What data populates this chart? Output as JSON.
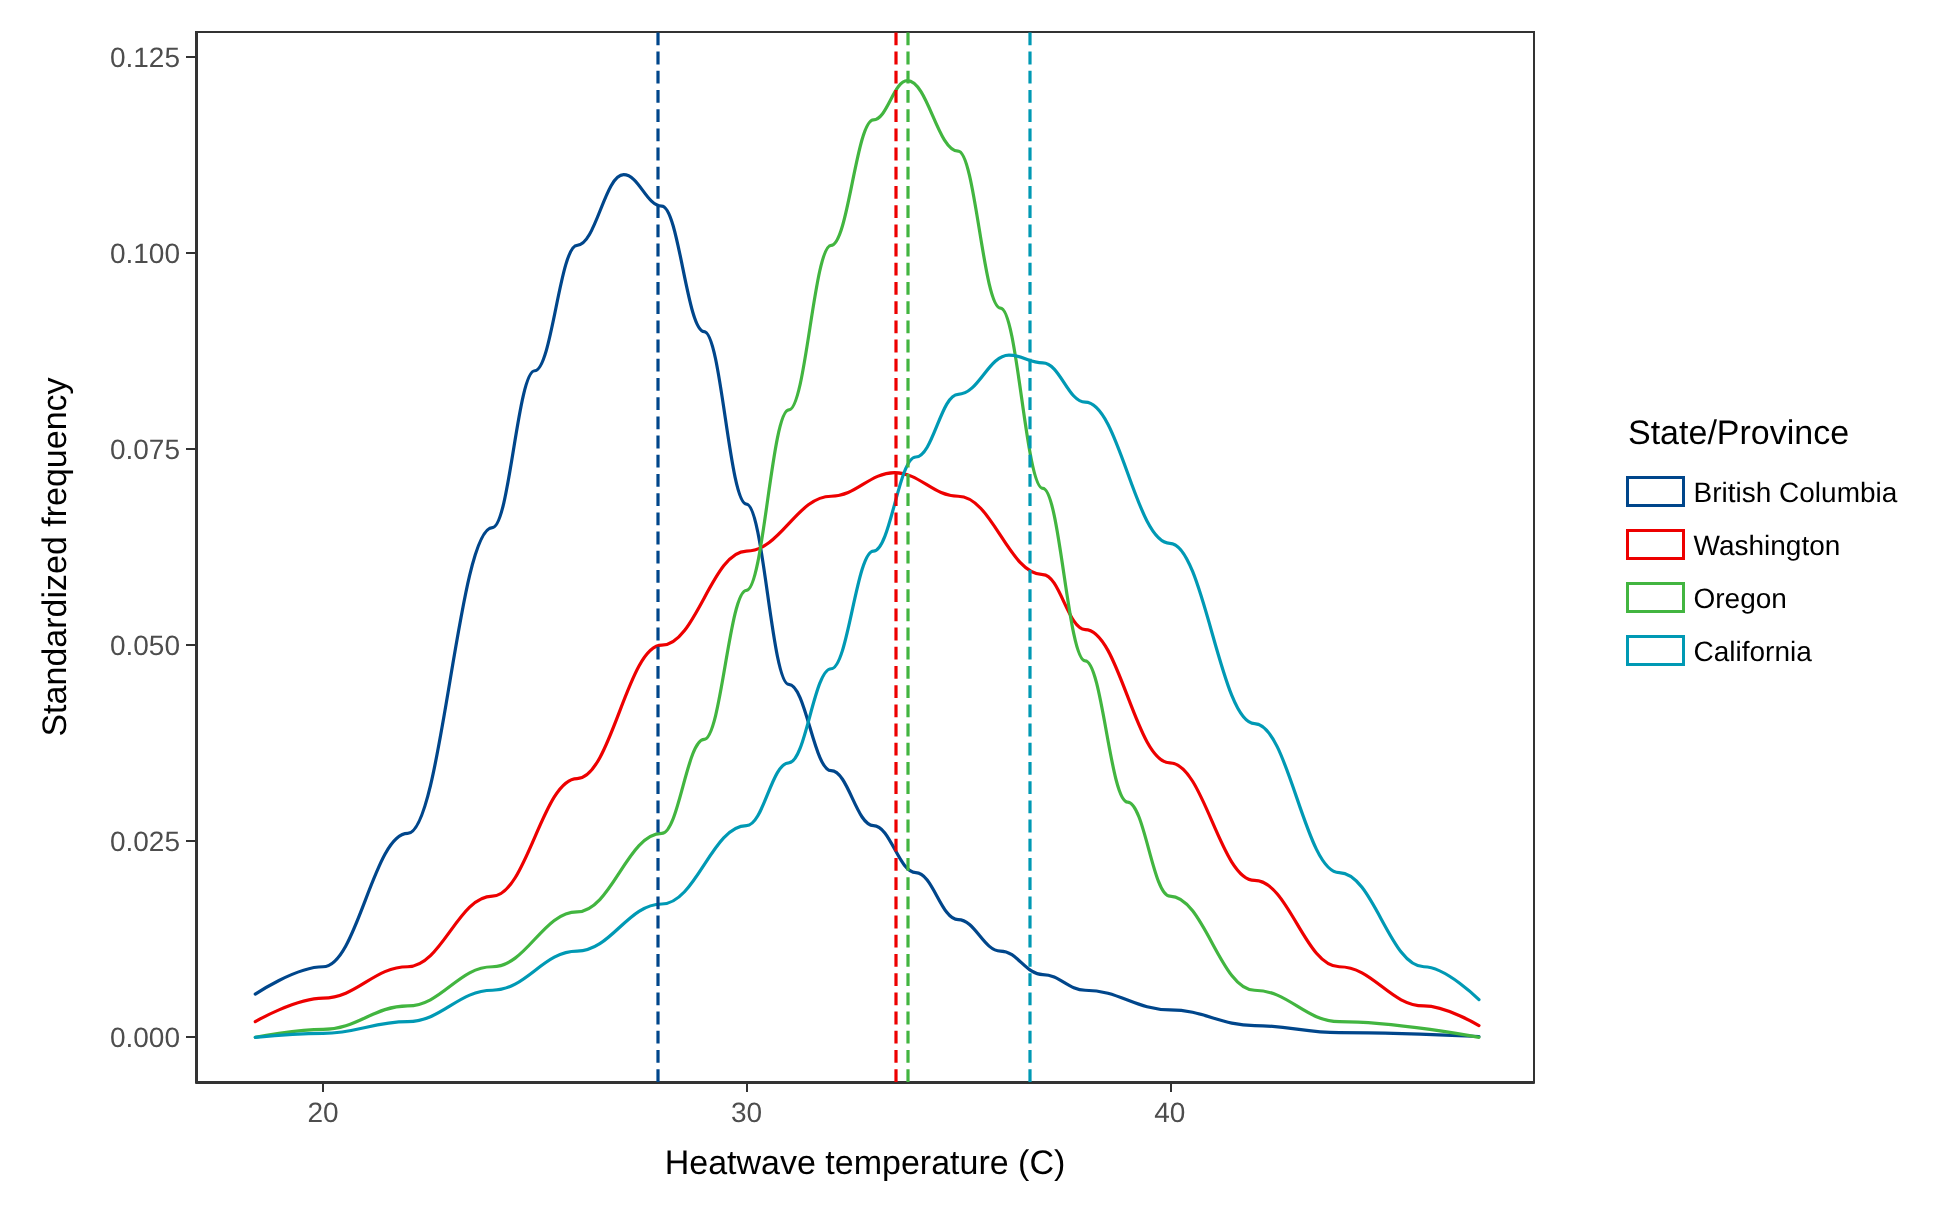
{
  "chart_data": {
    "type": "line",
    "xlabel": "Heatwave temperature (C)",
    "ylabel": "Standardized frequency",
    "legend_title": "State/Province",
    "legend": "right",
    "grid": false,
    "marker": "none",
    "line_style": "solid",
    "xlim": [
      17,
      48.6
    ],
    "xticks": [
      20,
      30,
      40
    ],
    "ylim": [
      -0.0057,
      0.1282
    ],
    "yticks": [
      {
        "value": 0,
        "label": "0.000"
      },
      {
        "value": 0.025,
        "label": "0.025"
      },
      {
        "value": 0.05,
        "label": "0.050"
      },
      {
        "value": 0.075,
        "label": "0.075"
      },
      {
        "value": 0.1,
        "label": "0.100"
      },
      {
        "value": 0.125,
        "label": "0.125"
      }
    ],
    "series": [
      {
        "name": "British Columbia",
        "color": "#00468b",
        "x": [
          18.4,
          20,
          22,
          24,
          25,
          26,
          27.1,
          28,
          29,
          30,
          31,
          32,
          33,
          34,
          35,
          36,
          37,
          38,
          40,
          42,
          44,
          47.3
        ],
        "values": [
          0.0055,
          0.009,
          0.026,
          0.065,
          0.085,
          0.101,
          0.11,
          0.106,
          0.09,
          0.068,
          0.045,
          0.034,
          0.027,
          0.021,
          0.015,
          0.011,
          0.008,
          0.006,
          0.0035,
          0.0015,
          0.0006,
          0.0001
        ]
      },
      {
        "name": "Washington",
        "color": "#ed0000",
        "x": [
          18.4,
          20,
          22,
          24,
          26,
          28,
          30,
          32,
          33.5,
          35,
          37,
          38,
          40,
          42,
          44,
          46,
          47.3
        ],
        "values": [
          0.002,
          0.005,
          0.009,
          0.018,
          0.033,
          0.05,
          0.062,
          0.069,
          0.072,
          0.069,
          0.059,
          0.052,
          0.035,
          0.02,
          0.009,
          0.004,
          0.0015
        ]
      },
      {
        "name": "Oregon",
        "color": "#42b540",
        "x": [
          18.4,
          20,
          22,
          24,
          26,
          28,
          29,
          30,
          31,
          32,
          33,
          33.8,
          35,
          36,
          37,
          38,
          39,
          40,
          42,
          44,
          47.3
        ],
        "values": [
          0,
          0.001,
          0.004,
          0.009,
          0.016,
          0.026,
          0.038,
          0.057,
          0.08,
          0.101,
          0.117,
          0.122,
          0.113,
          0.093,
          0.07,
          0.048,
          0.03,
          0.018,
          0.006,
          0.002,
          0
        ]
      },
      {
        "name": "California",
        "color": "#0099b4",
        "x": [
          18.4,
          20,
          22,
          24,
          26,
          28,
          30,
          31,
          32,
          33,
          34,
          35,
          36.2,
          37,
          38,
          40,
          42,
          44,
          46,
          47.3
        ],
        "values": [
          0,
          0.0005,
          0.002,
          0.006,
          0.011,
          0.017,
          0.027,
          0.035,
          0.047,
          0.062,
          0.074,
          0.082,
          0.087,
          0.086,
          0.081,
          0.063,
          0.04,
          0.021,
          0.009,
          0.0048
        ]
      }
    ],
    "ref_lines": [
      {
        "axis": "x",
        "value": 27.9,
        "color": "#00468b",
        "line_style": "dashed"
      },
      {
        "axis": "x",
        "value": 33.5,
        "color": "#ed0000",
        "line_style": "dashed"
      },
      {
        "axis": "x",
        "value": 33.8,
        "color": "#42b540",
        "line_style": "dashed"
      },
      {
        "axis": "x",
        "value": 36.7,
        "color": "#0099b4",
        "line_style": "dashed"
      }
    ]
  }
}
